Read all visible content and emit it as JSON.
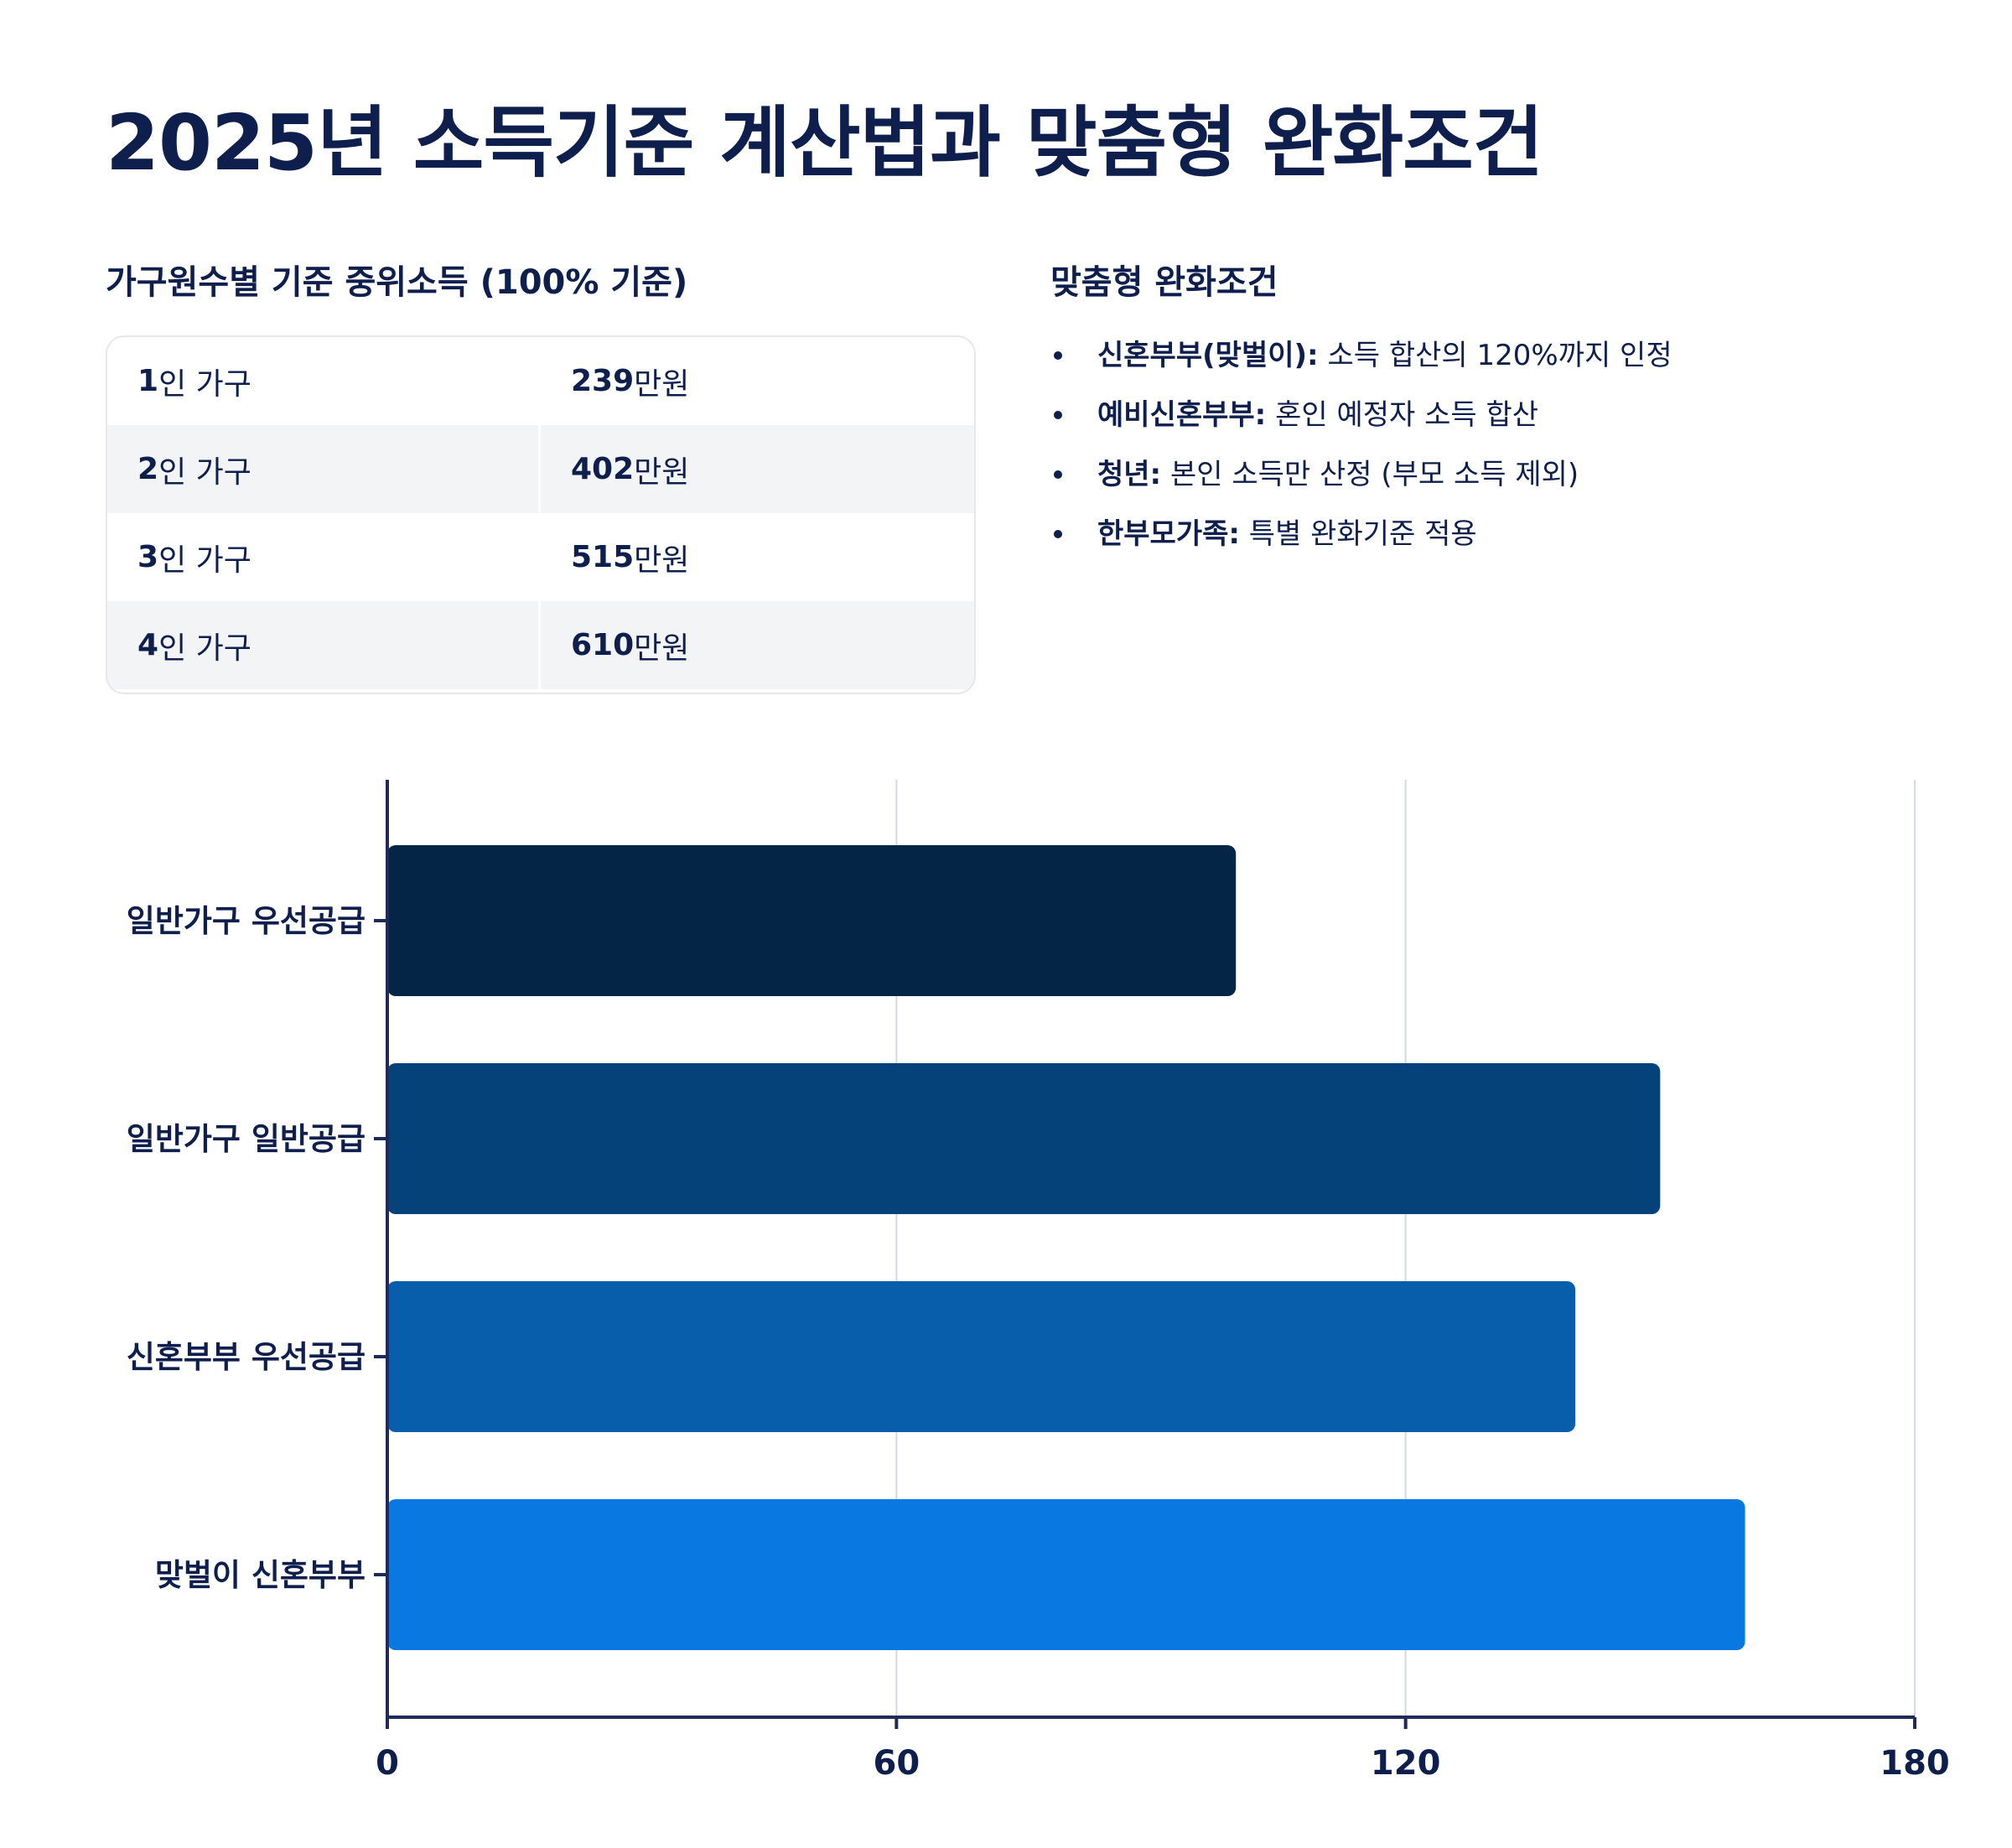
{
  "title": "2025년 소득기준 계산법과 맞춤형 완화조건",
  "income_table": {
    "title": "가구원수별 기준 중위소득 (100% 기준)",
    "rows": [
      {
        "household_num": "1",
        "household_unit": "인 가구",
        "amount_num": "239",
        "amount_unit": "만원"
      },
      {
        "household_num": "2",
        "household_unit": "인 가구",
        "amount_num": "402",
        "amount_unit": "만원"
      },
      {
        "household_num": "3",
        "household_unit": "인 가구",
        "amount_num": "515",
        "amount_unit": "만원"
      },
      {
        "household_num": "4",
        "household_unit": "인 가구",
        "amount_num": "610",
        "amount_unit": "만원"
      }
    ]
  },
  "conditions": {
    "title": "맞춤형 완화조건",
    "items": [
      {
        "label": "신혼부부(맞벌이):",
        "text": " 소득 합산의 120%까지 인정"
      },
      {
        "label": "예비신혼부부:",
        "text": " 혼인 예정자 소득 합산"
      },
      {
        "label": "청년:",
        "text": " 본인 소득만 산정 (부모 소득 제외)"
      },
      {
        "label": "한부모가족:",
        "text": " 특별 완화기준 적용"
      }
    ]
  },
  "chart_data": {
    "type": "bar",
    "orientation": "horizontal",
    "categories": [
      "일반가구 우선공급",
      "일반가구 일반공급",
      "신혼부부 우선공급",
      "맞벌이 신혼부부"
    ],
    "values": [
      100,
      150,
      140,
      160
    ],
    "xlim": [
      0,
      180
    ],
    "xticks": [
      0,
      60,
      120,
      180
    ],
    "grid": true,
    "colors": [
      "#052547",
      "#06427a",
      "#095eab",
      "#0978e0"
    ],
    "axis_color": "#1f2a5a",
    "grid_color": "#d5d9e3"
  }
}
